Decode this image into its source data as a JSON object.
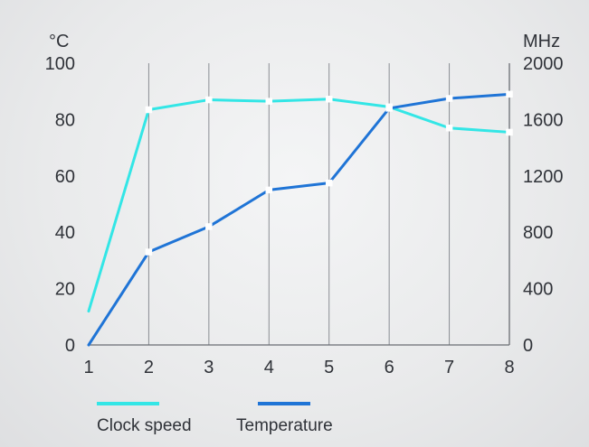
{
  "chart_data": {
    "type": "line",
    "x": [
      1,
      2,
      3,
      4,
      5,
      6,
      7,
      8
    ],
    "left_unit": "°C",
    "right_unit": "MHz",
    "left_ylim": [
      0,
      100
    ],
    "right_ylim": [
      0,
      2000
    ],
    "left_ticks": [
      0,
      20,
      40,
      60,
      80,
      100
    ],
    "right_ticks": [
      0,
      400,
      800,
      1200,
      1600,
      2000
    ],
    "grid": "vertical",
    "legend_position": "bottom-left",
    "series": [
      {
        "name": "Clock speed",
        "axis": "right",
        "color": "#33e6e6",
        "values": [
          240,
          1670,
          1740,
          1730,
          1745,
          1690,
          1540,
          1510
        ]
      },
      {
        "name": "Temperature",
        "axis": "left",
        "color": "#1f74d6",
        "values": [
          0,
          33,
          42,
          55,
          57.5,
          84,
          87.5,
          89
        ]
      }
    ]
  }
}
